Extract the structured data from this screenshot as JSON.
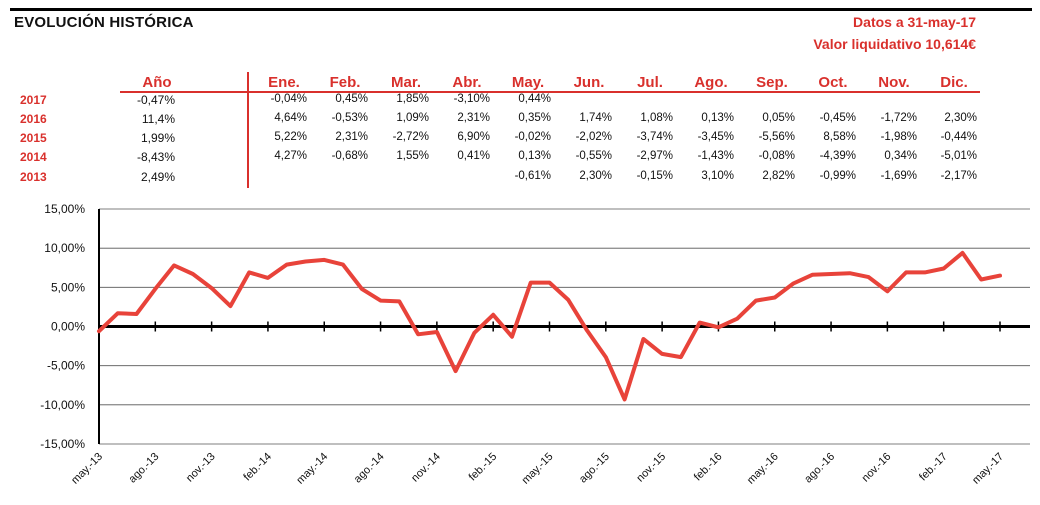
{
  "header": {
    "title": "EVOLUCIÓN HISTÓRICA",
    "date_label": "Datos a 31-may-17",
    "nav_label": "Valor liquidativo 10,614€"
  },
  "table": {
    "year_header": "Año",
    "months": [
      "Ene.",
      "Feb.",
      "Mar.",
      "Abr.",
      "May.",
      "Jun.",
      "Jul.",
      "Ago.",
      "Sep.",
      "Oct.",
      "Nov.",
      "Dic."
    ],
    "rows": [
      {
        "year": "2017",
        "annual": "-0,47%",
        "monthly": [
          "-0,04%",
          "0,45%",
          "1,85%",
          "-3,10%",
          "0,44%",
          "",
          "",
          "",
          "",
          "",
          "",
          ""
        ]
      },
      {
        "year": "2016",
        "annual": "11,4%",
        "monthly": [
          "4,64%",
          "-0,53%",
          "1,09%",
          "2,31%",
          "0,35%",
          "1,74%",
          "1,08%",
          "0,13%",
          "0,05%",
          "-0,45%",
          "-1,72%",
          "2,30%"
        ]
      },
      {
        "year": "2015",
        "annual": "1,99%",
        "monthly": [
          "5,22%",
          "2,31%",
          "-2,72%",
          "6,90%",
          "-0,02%",
          "-2,02%",
          "-3,74%",
          "-3,45%",
          "-5,56%",
          "8,58%",
          "-1,98%",
          "-0,44%"
        ]
      },
      {
        "year": "2014",
        "annual": "-8,43%",
        "monthly": [
          "4,27%",
          "-0,68%",
          "1,55%",
          "0,41%",
          "0,13%",
          "-0,55%",
          "-2,97%",
          "-1,43%",
          "-0,08%",
          "-4,39%",
          "0,34%",
          "-5,01%"
        ]
      },
      {
        "year": "2013",
        "annual": "2,49%",
        "monthly": [
          "",
          "",
          "",
          "",
          "-0,61%",
          "2,30%",
          "-0,15%",
          "3,10%",
          "2,82%",
          "-0,99%",
          "-1,69%",
          "-2,17%"
        ]
      }
    ]
  },
  "colors": {
    "accent": "#d9302c",
    "line": "#e8433a",
    "text": "#111111"
  },
  "chart_data": {
    "type": "line",
    "title": "",
    "xlabel": "",
    "ylabel": "",
    "ylim": [
      -15,
      15
    ],
    "y_ticks": [
      "15,00%",
      "10,00%",
      "5,00%",
      "0,00%",
      "-5,00%",
      "-10,00%",
      "-15,00%"
    ],
    "y_tick_values": [
      15,
      10,
      5,
      0,
      -5,
      -10,
      -15
    ],
    "x_ticks": [
      "may.-13",
      "ago.-13",
      "nov.-13",
      "feb.-14",
      "may.-14",
      "ago.-14",
      "nov.-14",
      "feb.-15",
      "may.-15",
      "ago.-15",
      "nov.-15",
      "feb.-16",
      "may.-16",
      "ago.-16",
      "nov.-16",
      "feb.-17",
      "may.-17"
    ],
    "grid": true,
    "series": [
      {
        "x": [
          "2013-05",
          "2013-06",
          "2013-07",
          "2013-08",
          "2013-09",
          "2013-10",
          "2013-11",
          "2013-12",
          "2014-01",
          "2014-02",
          "2014-03",
          "2014-04",
          "2014-05",
          "2014-06",
          "2014-07",
          "2014-08",
          "2014-09",
          "2014-10",
          "2014-11",
          "2014-12",
          "2015-01",
          "2015-02",
          "2015-03",
          "2015-04",
          "2015-05",
          "2015-06",
          "2015-07",
          "2015-08",
          "2015-09",
          "2015-10",
          "2015-11",
          "2015-12",
          "2016-01",
          "2016-02",
          "2016-03",
          "2016-04",
          "2016-05",
          "2016-06",
          "2016-07",
          "2016-08",
          "2016-09",
          "2016-10",
          "2016-11",
          "2016-12",
          "2017-01",
          "2017-02",
          "2017-03",
          "2017-04",
          "2017-05"
        ],
        "values": [
          -0.6,
          1.7,
          1.6,
          4.8,
          7.8,
          6.7,
          4.9,
          2.6,
          6.9,
          6.2,
          7.9,
          8.3,
          8.5,
          7.9,
          4.8,
          3.3,
          3.2,
          -1.0,
          -0.7,
          -5.7,
          -0.8,
          1.5,
          -1.3,
          5.6,
          5.6,
          3.4,
          -0.5,
          -3.9,
          -9.3,
          -1.6,
          -3.5,
          -3.9,
          0.5,
          -0.1,
          1.0,
          3.3,
          3.7,
          5.5,
          6.6,
          6.7,
          6.8,
          6.3,
          4.5,
          6.9,
          6.9,
          7.4,
          9.4,
          6.0,
          6.5
        ]
      }
    ]
  }
}
